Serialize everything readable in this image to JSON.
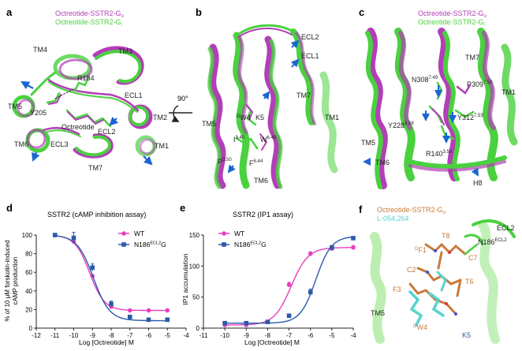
{
  "colors": {
    "magenta": "#b23fb7",
    "green": "#4ad13f",
    "pink": "#e83fbf",
    "blue": "#2b5aa8",
    "orange": "#c87a3a",
    "cyan": "#58d3d0",
    "arrow": "#1a66d1"
  },
  "panel_a": {
    "letter": "a",
    "legend": {
      "entry1": "Octreotide-SSTR2-G",
      "entry1_sub": "o",
      "entry2": "Octreotide-SSTR2-G",
      "entry2_sub": "i"
    },
    "labels": {
      "tm4": "TM4",
      "tm3": "TM3",
      "r184": "R184",
      "tm5": "TM5",
      "ecl1": "ECL1",
      "y205": "Y205",
      "tm2": "TM2",
      "octreotide": "Octreotide",
      "ecl2": "ECL2",
      "tm6": "TM6",
      "ecl3": "ECL3",
      "tm1": "TM1",
      "tm7": "TM7"
    },
    "rotation": "90°"
  },
  "panel_b": {
    "letter": "b",
    "labels": {
      "ecl2": "ECL2",
      "ecl1": "ECL1",
      "tm7": "TM7",
      "tm1": "TM1",
      "tm5": "TM5",
      "w4": "W4",
      "w4_pre": "D",
      "k5": "K5",
      "i340": "I",
      "i340_sup": "3.40",
      "w648": "W",
      "w648_sup": "6.48",
      "p550": "P",
      "p550_sup": "5.50",
      "f644": "F",
      "f644_sup": "6.44",
      "tm6": "TM6"
    }
  },
  "panel_c": {
    "letter": "c",
    "legend": {
      "entry1": "Octreotide-SSTR2-G",
      "entry1_sub": "o",
      "entry2": "Octreotide-SSTR2-G",
      "entry2_sub": "i"
    },
    "labels": {
      "tm7": "TM7",
      "n308": "N308",
      "n308_sup": "7.49",
      "p309": "P309",
      "p309_sup": "7.50",
      "tm1": "TM1",
      "y228": "Y228",
      "y228_sup": "5.58",
      "y312": "Y312",
      "y312_sup": "7.53",
      "r140": "R140",
      "r140_sup": "3.50",
      "tm5": "TM5",
      "tm6": "TM6",
      "h8": "H8"
    }
  },
  "panel_d": {
    "letter": "d",
    "title": "SSTR2 (cAMP inhibition assay)",
    "ylabel_line1": "% of 10 μM forskolin-induced",
    "ylabel_line2": "cAMP production",
    "xlabel": "Log [Octreotide] M",
    "legend_wt": "WT",
    "legend_mut": "N186",
    "legend_mut_sup": "ECL2",
    "legend_mut_suffix": "G"
  },
  "panel_e": {
    "letter": "e",
    "title": "SSTR2 (IP1 assay)",
    "ylabel": "IP1 accumulation",
    "xlabel": "Log [Octreotide] M",
    "legend_wt": "WT",
    "legend_mut": "N186",
    "legend_mut_sup": "ECL2",
    "legend_mut_suffix": "G"
  },
  "panel_f": {
    "letter": "f",
    "legend": {
      "entry1": "Octreotide-SSTR2-G",
      "entry1_sub": "o",
      "entry2": "L-054,264"
    },
    "labels": {
      "ecl2": "ECL2",
      "t8": "T8",
      "n186": "N186",
      "n186_sup": "ECL2",
      "f1": "F1",
      "f1_pre": "D",
      "c7": "C7",
      "c2": "C2",
      "t6": "T6",
      "f3": "F3",
      "tm5": "TM5",
      "w4": "W4",
      "w4_pre": "D",
      "k5": "K5"
    }
  },
  "chart_data": [
    {
      "type": "line",
      "panel": "d",
      "title": "SSTR2 (cAMP inhibition assay)",
      "xlabel": "Log [Octreotide] M",
      "ylabel": "% of 10 μM forskolin-induced cAMP production",
      "xlim": [
        -12,
        -4
      ],
      "ylim": [
        0,
        100
      ],
      "xticks": [
        -12,
        -11,
        -10,
        -9,
        -8,
        -7,
        -6,
        -5,
        -4
      ],
      "yticks": [
        0,
        20,
        40,
        60,
        80,
        100
      ],
      "series": [
        {
          "name": "WT",
          "color": "#e83fbf",
          "marker": "circle",
          "x": [
            -11,
            -10,
            -9,
            -8,
            -7,
            -6,
            -5
          ],
          "y": [
            100,
            93,
            56,
            23,
            19,
            19,
            19
          ],
          "fit": {
            "top": 100,
            "bottom": 19,
            "logec50": -9.15,
            "hill": 1.1
          }
        },
        {
          "name": "N186ECL2G",
          "color": "#2b5aa8",
          "marker": "square",
          "x": [
            -11,
            -10,
            -9,
            -8,
            -7,
            -6,
            -5
          ],
          "y": [
            100,
            97,
            65,
            26,
            12,
            9,
            9
          ],
          "yerr": [
            0,
            6,
            4,
            3,
            2,
            2,
            2
          ],
          "fit": {
            "top": 100,
            "bottom": 8,
            "logec50": -8.95,
            "hill": 1.0
          }
        }
      ]
    },
    {
      "type": "line",
      "panel": "e",
      "title": "SSTR2 (IP1 assay)",
      "xlabel": "Log [Octreotide] M",
      "ylabel": "IP1 accumulation",
      "xlim": [
        -11,
        -4
      ],
      "ylim": [
        0,
        150
      ],
      "xticks": [
        -11,
        -10,
        -9,
        -8,
        -7,
        -6,
        -5,
        -4
      ],
      "yticks": [
        0,
        50,
        100,
        150
      ],
      "series": [
        {
          "name": "WT",
          "color": "#e83fbf",
          "marker": "circle",
          "x": [
            -10,
            -9,
            -8,
            -7,
            -6,
            -5,
            -4
          ],
          "y": [
            5,
            5,
            10,
            70,
            120,
            128,
            130
          ],
          "yerr": [
            0,
            0,
            0,
            4,
            3,
            3,
            3
          ],
          "fit": {
            "top": 130,
            "bottom": 5,
            "logec50": -6.9,
            "hill": 1.1
          }
        },
        {
          "name": "N186ECL2G",
          "color": "#2b5aa8",
          "marker": "square",
          "x": [
            -10,
            -9,
            -8,
            -7,
            -6,
            -5,
            -4
          ],
          "y": [
            8,
            8,
            10,
            20,
            58,
            130,
            145
          ],
          "yerr": [
            0,
            0,
            0,
            2,
            5,
            3,
            2
          ],
          "fit": {
            "top": 148,
            "bottom": 8,
            "logec50": -5.75,
            "hill": 1.2
          }
        }
      ]
    }
  ]
}
